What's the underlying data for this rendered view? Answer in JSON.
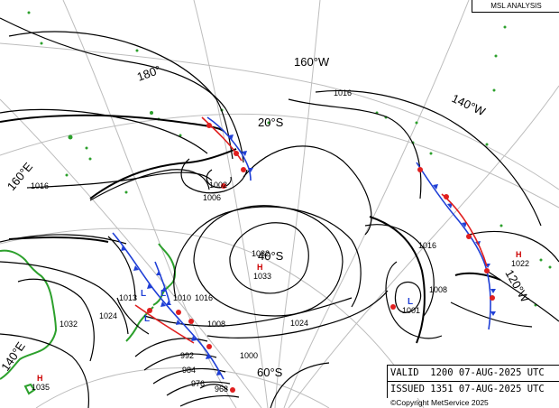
{
  "chart_title": "MSL ANALYSIS",
  "valid_label": "VALID",
  "valid_time": "1200 07-AUG-2025 UTC",
  "issued_label": "ISSUED",
  "issued_time": "1351 07-AUG-2025 UTC",
  "copyright": "©Copyright MetService 2025",
  "graticule_labels": {
    "lon_180": "180°",
    "lon_160w": "160°W",
    "lon_140w": "140°W",
    "lon_120w": "120°W",
    "lon_160e": "160°E",
    "lon_140e": "140°E",
    "lat_20s": "20°S",
    "lat_40s": "40°S",
    "lat_60s": "60°S"
  },
  "isobar_labels": {
    "i1016_top": "1016",
    "i1016_left": "1016",
    "i1006": "1006",
    "i1002": "1002",
    "i1032_centre": "1032",
    "i1033_high": "1033",
    "i1024_mid": "1024",
    "i1016_right": "1016",
    "i1008_right": "1008",
    "i1001_low": "1001",
    "i1022_high": "1022",
    "i1013": "1013",
    "i1010": "1010",
    "i1016_nz": "1016",
    "i1024_left": "1024",
    "i1032_left": "1032",
    "i1035_high": "1035",
    "i1008_low": "1008",
    "i1000": "1000",
    "i992": "992",
    "i984": "984",
    "i976": "976",
    "i968": "968"
  },
  "pressure_symbols": {
    "high": "H",
    "low": "L"
  },
  "colors": {
    "isobar": "#000000",
    "graticule": "#bdbdbd",
    "land": "#2ca02c",
    "cold_front": "#1f3fd6",
    "warm_front": "#e01f1f",
    "high_marker": "#cc0000",
    "low_marker": "#1f3fd6"
  }
}
